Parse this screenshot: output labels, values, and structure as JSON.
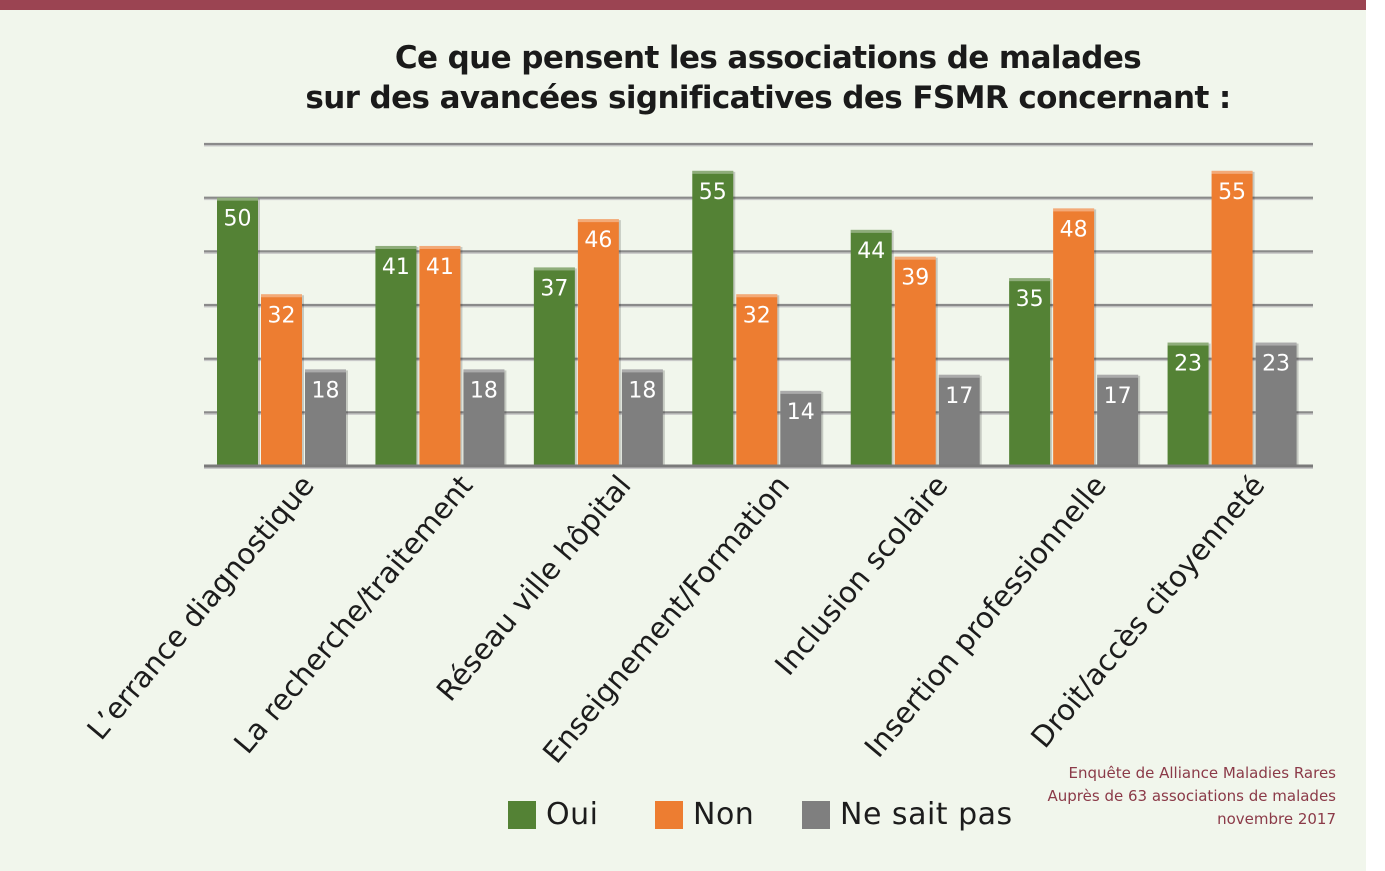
{
  "title": {
    "line1": "Ce que pensent les associations de malades",
    "line2": "sur des avancées significatives des FSMR concernant :"
  },
  "colors": {
    "oui": "#548235",
    "non": "#ed7d31",
    "nsp": "#7f7f7f",
    "accent": "#9b4452"
  },
  "legend": {
    "oui": "Oui",
    "non": "Non",
    "nsp": "Ne sait pas"
  },
  "source": {
    "line1": "Enquête de Alliance Maladies Rares",
    "line2": "Auprès de 63 associations de malades",
    "line3": "novembre 2017"
  },
  "chart_data": {
    "type": "bar",
    "title": "Ce que pensent les associations de malades sur des avancées significatives des FSMR concernant :",
    "categories": [
      "L’errance diagnostique",
      "La recherche/traitement",
      "Réseau ville hôpital",
      "Enseignement/Formation",
      "Inclusion scolaire",
      "Insertion professionnelle",
      "Droit/accès citoyenneté"
    ],
    "series": [
      {
        "name": "Oui",
        "values": [
          50,
          41,
          37,
          55,
          44,
          35,
          23
        ]
      },
      {
        "name": "Non",
        "values": [
          32,
          41,
          46,
          32,
          39,
          48,
          55
        ]
      },
      {
        "name": "Ne sait pas",
        "values": [
          18,
          18,
          18,
          14,
          17,
          17,
          23
        ]
      }
    ],
    "ylim": [
      0,
      60
    ],
    "grid": true,
    "xlabel": "",
    "ylabel": "",
    "legend_position": "bottom"
  }
}
